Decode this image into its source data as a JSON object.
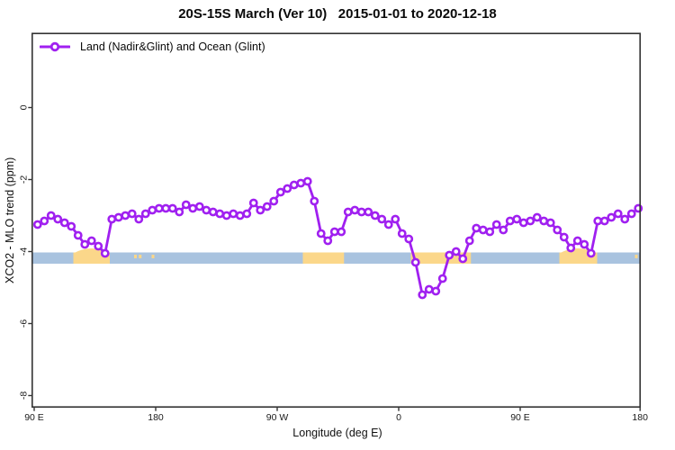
{
  "chart_data": {
    "type": "line",
    "title": "20S-15S March (Ver 10)   2015-01-01 to 2020-12-18",
    "xlabel": "Longitude (deg E)",
    "ylabel": "XCO2 - MLO trend (ppm)",
    "grid": false,
    "legend_position": "top-left-inside",
    "x_ticks": [
      {
        "lon": 90,
        "label": "90 E"
      },
      {
        "lon": 180,
        "label": "180"
      },
      {
        "lon": 270,
        "label": "90 W"
      },
      {
        "lon": 360,
        "label": "0"
      },
      {
        "lon": 450,
        "label": "90 E"
      },
      {
        "lon": 540,
        "label": "180"
      }
    ],
    "y_ticks": [
      {
        "value": 0,
        "label": "0"
      },
      {
        "value": -2,
        "label": "-2"
      },
      {
        "value": -4,
        "label": "-4"
      },
      {
        "value": -6,
        "label": "-6"
      },
      {
        "value": -8,
        "label": "-8"
      }
    ],
    "xlim": [
      88,
      540
    ],
    "ylim": [
      -8.3,
      2.05
    ],
    "series": [
      {
        "name": "Land (Nadir&Glint) and Ocean (Glint)",
        "color": "#A020F0",
        "marker": "open-circle",
        "x_start": 92.5,
        "x_step": 5,
        "values": [
          -3.25,
          -3.15,
          -3.0,
          -3.1,
          -3.2,
          -3.3,
          -3.55,
          -3.8,
          -3.7,
          -3.85,
          -4.05,
          -3.1,
          -3.05,
          -3.0,
          -2.95,
          -3.1,
          -2.95,
          -2.85,
          -2.8,
          -2.8,
          -2.8,
          -2.9,
          -2.7,
          -2.8,
          -2.75,
          -2.85,
          -2.9,
          -2.95,
          -3.0,
          -2.95,
          -3.0,
          -2.95,
          -2.65,
          -2.85,
          -2.75,
          -2.6,
          -2.35,
          -2.25,
          -2.15,
          -2.1,
          -2.05,
          -2.6,
          -3.5,
          -3.7,
          -3.45,
          -3.45,
          -2.9,
          -2.85,
          -2.9,
          -2.9,
          -3.0,
          -3.1,
          -3.25,
          -3.1,
          -3.5,
          -3.65,
          -4.3,
          -5.2,
          -5.05,
          -5.1,
          -4.75,
          -4.1,
          -4.0,
          -4.2,
          -3.7,
          -3.35,
          -3.4,
          -3.45,
          -3.25,
          -3.4,
          -3.15,
          -3.1,
          -3.2,
          -3.15,
          -3.05,
          -3.15,
          -3.2,
          -3.4,
          -3.6,
          -3.9,
          -3.7,
          -3.8,
          -4.05,
          -3.15,
          -3.15,
          -3.05,
          -2.95,
          -3.1,
          -2.95,
          -2.8
        ]
      }
    ],
    "surface_band": {
      "description": "land-ocean strip at approx -4.1 ppm",
      "center_value": -4.17,
      "ocean_color": "#A9C3DF",
      "land_color": "#FBD78A",
      "land_segments": [
        {
          "from": 119,
          "to": 146,
          "bump": true
        },
        {
          "from": 289,
          "to": 319.5,
          "bump": false
        },
        {
          "from": 369,
          "to": 413.5,
          "bump": false
        },
        {
          "from": 479,
          "to": 507,
          "bump": true
        }
      ],
      "island_lons": [
        165,
        168.5,
        178,
        536
      ]
    }
  }
}
